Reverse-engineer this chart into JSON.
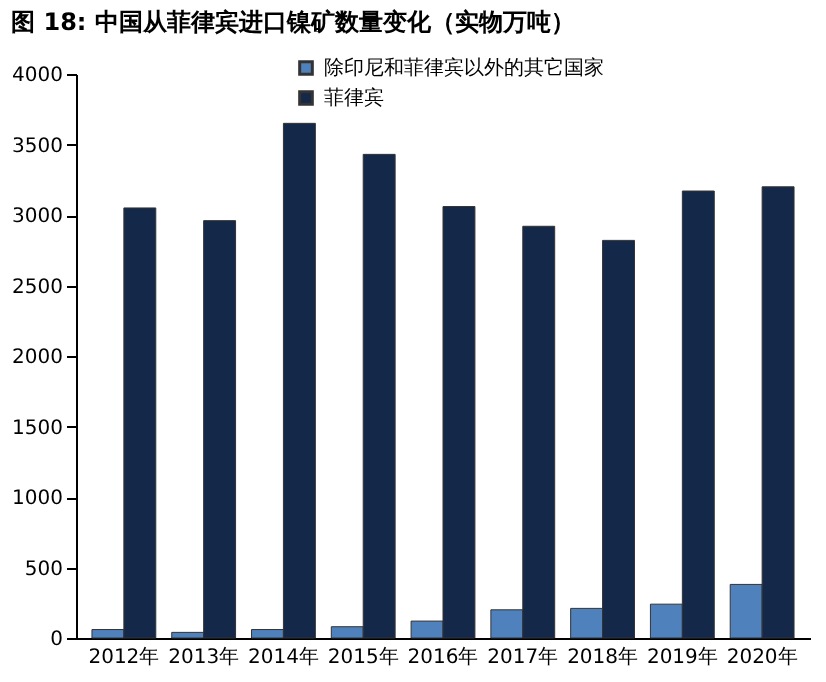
{
  "chart_data": {
    "type": "bar",
    "title": "图 18:  中国从菲律宾进口镍矿数量变化（实物万吨）",
    "categories": [
      "2012年",
      "2013年",
      "2014年",
      "2015年",
      "2016年",
      "2017年",
      "2018年",
      "2019年",
      "2020年"
    ],
    "series": [
      {
        "name": "除印尼和菲律宾以外的其它国家",
        "color": "#4f81bd",
        "values": [
          60,
          40,
          60,
          80,
          120,
          200,
          210,
          240,
          380
        ]
      },
      {
        "name": "菲律宾",
        "color": "#14284a",
        "values": [
          3050,
          2960,
          3650,
          3430,
          3060,
          2920,
          2820,
          3170,
          3200
        ]
      }
    ],
    "ylim": [
      0,
      4000
    ],
    "yticks": [
      0,
      500,
      1000,
      1500,
      2000,
      2500,
      3000,
      3500,
      4000
    ],
    "grid": false,
    "legend": "top"
  }
}
